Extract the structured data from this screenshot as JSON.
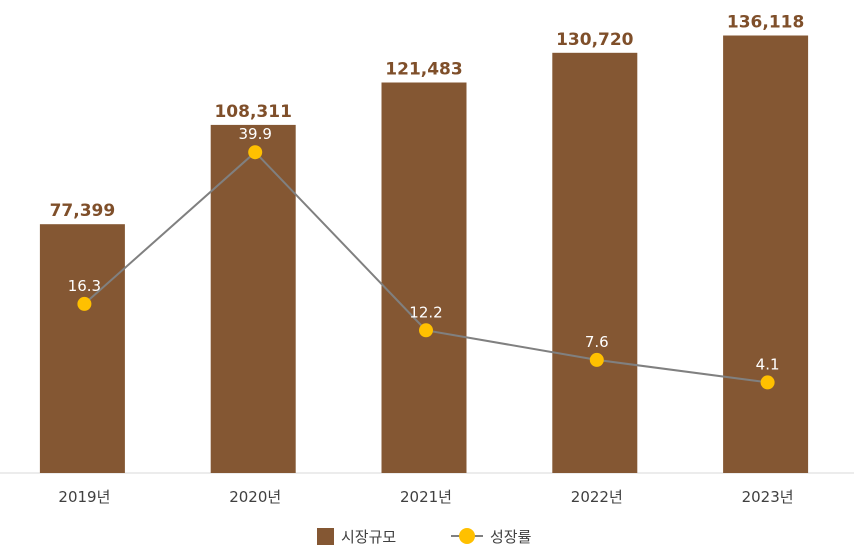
{
  "chart_data": {
    "type": "bar",
    "categories": [
      "2019년",
      "2020년",
      "2021년",
      "2022년",
      "2023년"
    ],
    "series": [
      {
        "name": "시장규모",
        "type": "bar",
        "values": [
          77399,
          108311,
          121483,
          130720,
          136118
        ],
        "value_labels": [
          "77,399",
          "108,311",
          "121,483",
          "130,720",
          "136,118"
        ],
        "color": "#845733"
      },
      {
        "name": "성장률",
        "type": "line",
        "values": [
          16.3,
          39.9,
          12.2,
          7.6,
          4.1
        ],
        "value_labels": [
          "16.3",
          "39.9",
          "12.2",
          "7.6",
          "4.1"
        ],
        "color": "#ffc000",
        "line_color": "#808080"
      }
    ],
    "bar_axis_range": [
      0,
      140000
    ],
    "line_axis_range": [
      -10,
      60
    ],
    "grid": false,
    "legend_position": "bottom-center"
  }
}
